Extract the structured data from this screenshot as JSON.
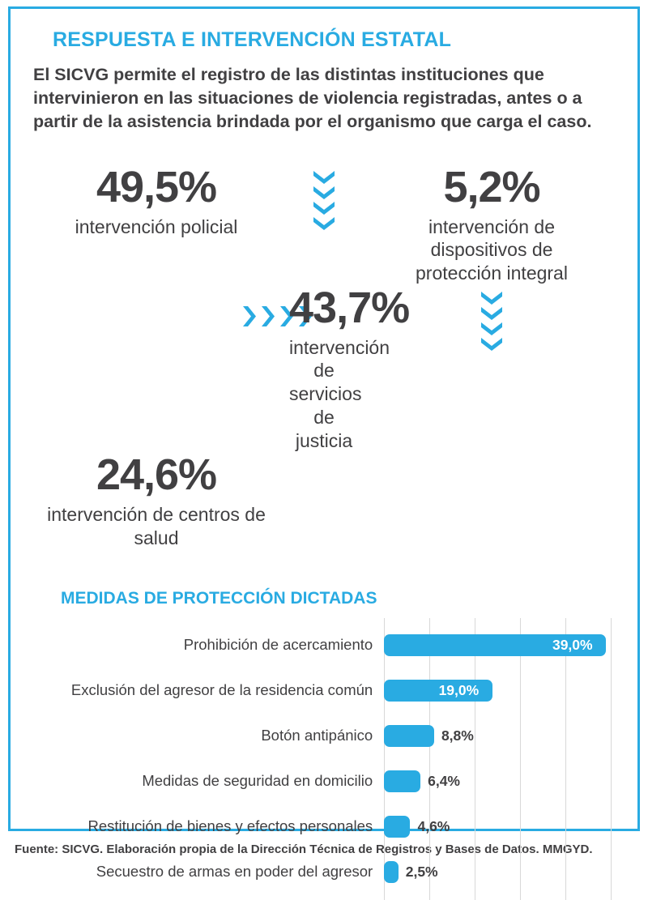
{
  "colors": {
    "accent": "#29abe2",
    "text": "#414042",
    "grid": "#d8d8d8",
    "bar_value_inside": "#ffffff"
  },
  "header": {
    "title": "RESPUESTA E INTERVENCIÓN ESTATAL",
    "intro": "El SICVG permite el registro de las distintas instituciones que intervinieron en las situaciones de violencia registradas, antes o a partir de la asistencia brindada por el organismo que carga el caso."
  },
  "stats": [
    {
      "value": "49,5%",
      "label": "intervención policial"
    },
    {
      "value": "5,2%",
      "label": "intervención de dispositivos de protección integral"
    },
    {
      "value": "43,7%",
      "label": "intervención de servicios de justicia"
    },
    {
      "value": "24,6%",
      "label": "intervención de centros de salud"
    }
  ],
  "icons": {
    "down_arrows": "chevrons-down-icon",
    "right_arrows": "chevrons-right-icon"
  },
  "chart_data": {
    "type": "bar",
    "orientation": "horizontal",
    "title": "MEDIDAS DE PROTECCIÓN DICTADAS",
    "categories": [
      "Prohibición de acercamiento",
      "Exclusión del agresor de la residencia común",
      "Botón antipánico",
      "Medidas de seguridad en domicilio",
      "Restitución de bienes y efectos personales",
      "Secuestro de armas en poder del agresor"
    ],
    "values": [
      39.0,
      19.0,
      8.8,
      6.4,
      4.6,
      2.5
    ],
    "value_labels": [
      "39,0%",
      "19,0%",
      "8,8%",
      "6,4%",
      "4,6%",
      "2,5%"
    ],
    "xlabel": "",
    "ylabel": "",
    "xlim": [
      0,
      40
    ],
    "gridlines": 6,
    "grid": true,
    "legend": false,
    "bar_color": "#29abe2"
  },
  "footer": {
    "source": "Fuente: SICVG. Elaboración propia de la Dirección Técnica de Registros y Bases de Datos. MMGYD."
  }
}
